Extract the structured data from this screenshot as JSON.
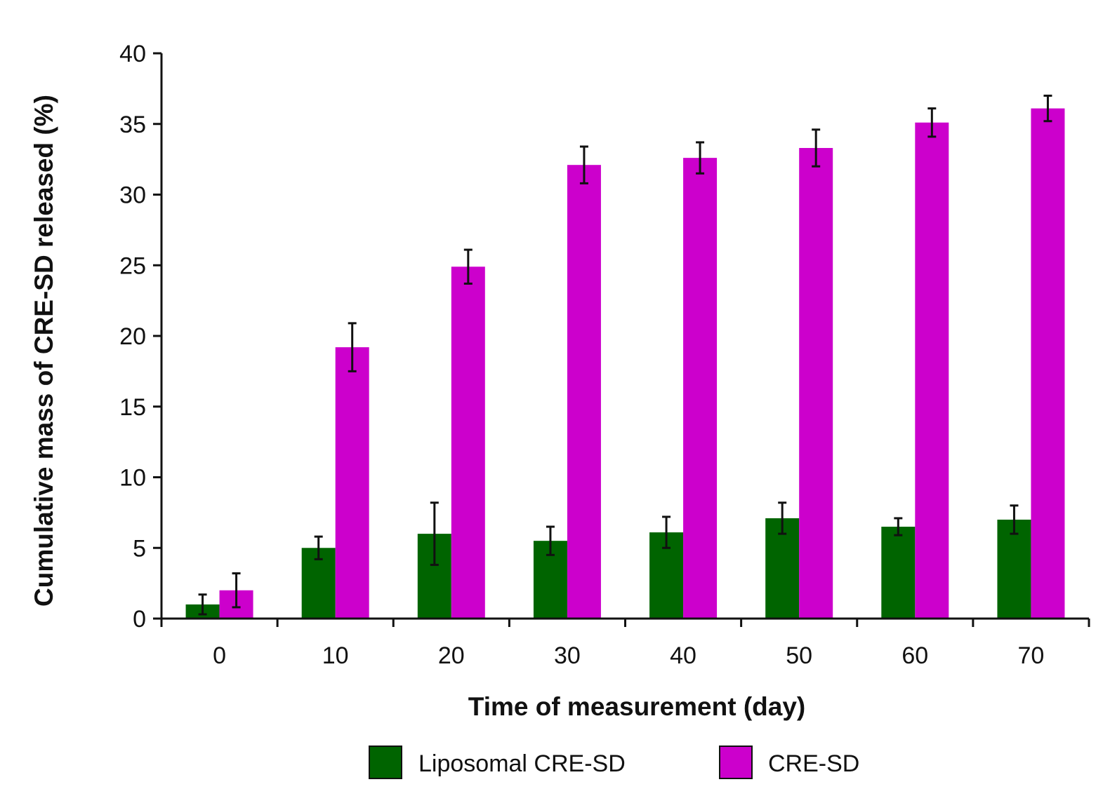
{
  "chart_data": {
    "type": "bar",
    "title": "",
    "xlabel": "Time of measurement (day)",
    "ylabel": "Cumulative mass of CRE-SD released (%)",
    "categories": [
      "0",
      "10",
      "20",
      "30",
      "40",
      "50",
      "60",
      "70"
    ],
    "ylim": [
      0,
      40
    ],
    "yticks": [
      0,
      5,
      10,
      15,
      20,
      25,
      30,
      35,
      40
    ],
    "grid": false,
    "legend_position": "bottom",
    "series": [
      {
        "name": "Liposomal CRE-SD",
        "color": "#006400",
        "values": [
          1.0,
          5.0,
          6.0,
          5.5,
          6.1,
          7.1,
          6.5,
          7.0
        ],
        "errors": [
          0.7,
          0.8,
          2.2,
          1.0,
          1.1,
          1.1,
          0.6,
          1.0
        ]
      },
      {
        "name": "CRE-SD",
        "color": "#CC00CC",
        "values": [
          2.0,
          19.2,
          24.9,
          32.1,
          32.6,
          33.3,
          35.1,
          36.1
        ],
        "errors": [
          1.2,
          1.7,
          1.2,
          1.3,
          1.1,
          1.3,
          1.0,
          0.9
        ]
      }
    ]
  }
}
